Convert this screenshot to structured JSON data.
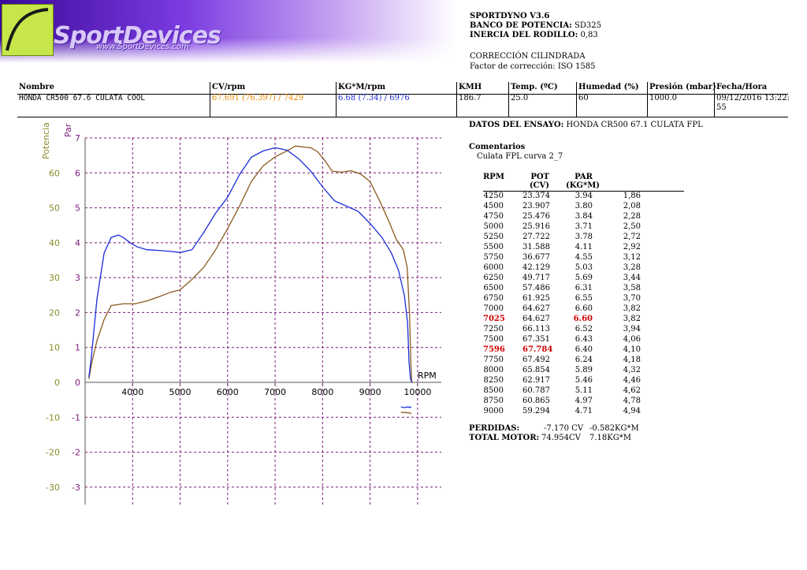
{
  "logo": {
    "text": "SportDevices",
    "url": "www.SportDevices.com"
  },
  "header": {
    "app": "SPORTDYNO V3.6",
    "banco_label": "BANCO DE POTENCIA:",
    "banco_value": "SD325",
    "inercia_label": "INERCIA DEL RODILLO:",
    "inercia_value": "0,83",
    "correccion": "CORRECCIÓN CILINDRADA",
    "factor": "Factor de corrección: ISO 1585"
  },
  "run_table": {
    "headers": [
      "Nombre",
      "CV/rpm",
      "KG*M/rpm",
      "KMH",
      "Temp. (ºC)",
      "Humedad (%)",
      "Presión (mbar)",
      "Fecha/Hora"
    ],
    "row": [
      "HONDA CR500 67.6 CULATA COOL",
      "67.691 (76.397) / 7429",
      "6.68 (7.34) / 6976",
      "186.7",
      "25.0",
      "60",
      "1000.0",
      "09/12/2016 13:22:",
      "55"
    ],
    "colors": {
      "cv": "#e38a00",
      "kgm": "#1a2cd8"
    }
  },
  "test": {
    "label": "DATOS DEL ENSAYO:",
    "value": "HONDA CR500 67.1 CULATA FPL",
    "comments_label": "Comentarios",
    "comments": "Culata FPL curva 2_7"
  },
  "points_table": {
    "headers": {
      "rpm": "RPM",
      "pot": "POT",
      "pot_unit": "(CV)",
      "par": "PAR",
      "par_unit": "(KG*M)"
    },
    "rows": [
      [
        "4250",
        "23.374",
        "3.94",
        "1,86"
      ],
      [
        "4500",
        "23.907",
        "3.80",
        "2,08"
      ],
      [
        "4750",
        "25.476",
        "3.84",
        "2,28"
      ],
      [
        "5000",
        "25.916",
        "3.71",
        "2,50"
      ],
      [
        "5250",
        "27.722",
        "3.78",
        "2,72"
      ],
      [
        "5500",
        "31.588",
        "4.11",
        "2,92"
      ],
      [
        "5750",
        "36.677",
        "4.55",
        "3,12"
      ],
      [
        "6000",
        "42.129",
        "5.03",
        "3,28"
      ],
      [
        "6250",
        "49.717",
        "5.69",
        "3,44"
      ],
      [
        "6500",
        "57.486",
        "6.31",
        "3,58"
      ],
      [
        "6750",
        "61.925",
        "6.55",
        "3,70"
      ],
      [
        "7000",
        "64.627",
        "6.60",
        "3,82"
      ],
      [
        "7025",
        "64.627",
        "6.60",
        "3,82"
      ],
      [
        "7250",
        "66.113",
        "6.52",
        "3,94"
      ],
      [
        "7500",
        "67.351",
        "6.43",
        "4,06"
      ],
      [
        "7596",
        "67.784",
        "6.40",
        "4,10"
      ],
      [
        "7750",
        "67.492",
        "6.24",
        "4,18"
      ],
      [
        "8000",
        "65.854",
        "5.89",
        "4,32"
      ],
      [
        "8250",
        "62.917",
        "5.46",
        "4,46"
      ],
      [
        "8500",
        "60.787",
        "5.11",
        "4,62"
      ],
      [
        "8750",
        "60.865",
        "4.97",
        "4,78"
      ],
      [
        "9000",
        "59.294",
        "4.71",
        "4,94"
      ]
    ],
    "highlight": {
      "7025": "par",
      "7596": "pot"
    }
  },
  "footer": {
    "perdidas_label": "PERDIDAS:",
    "perdidas_cv": "-7.170 CV",
    "perdidas_kgm": "-0.582KG*M",
    "total_label": "TOTAL MOTOR:",
    "total_cv": "74.954CV",
    "total_kgm": "7.18KG*M"
  },
  "chart_data": {
    "type": "line",
    "xlabel": "RPM",
    "y1label": "Potencia",
    "y2label": "Par",
    "xlim": [
      3000,
      10500
    ],
    "x_ticks": [
      "4000",
      "5000",
      "6000",
      "7000",
      "8000",
      "9000",
      "10000"
    ],
    "y1lim": [
      -35,
      70
    ],
    "y1_ticks": [
      "60",
      "50",
      "40",
      "30",
      "20",
      "10",
      "0",
      "-10",
      "-20",
      "-30"
    ],
    "y2lim": [
      -3.5,
      7
    ],
    "y2_ticks": [
      "7",
      "6",
      "5",
      "4",
      "3",
      "2",
      "1",
      "0",
      "-1",
      "-2",
      "-3"
    ],
    "colors": {
      "potencia": "#8b5a1e",
      "par": "#1a2cd8",
      "grid": "#7a1a7a",
      "y1": "#8b8b2a",
      "y2": "#7a1a7a"
    },
    "grid": true,
    "series": [
      {
        "axis": "y1",
        "x": [
          3080,
          3130,
          3250,
          3400,
          3550,
          3800,
          4050,
          4300,
          4550,
          4800,
          5000,
          5250,
          5500,
          5750,
          6000,
          6250,
          6500,
          6750,
          7000,
          7250,
          7430,
          7600,
          7750,
          7900,
          8050,
          8200,
          8400,
          8600,
          8800,
          9000,
          9200,
          9400,
          9550,
          9700,
          9780,
          9830,
          9860,
          9880,
          9900
        ],
        "y": [
          1,
          5,
          12,
          18,
          22,
          22.5,
          22.5,
          23.3,
          24.5,
          25.8,
          26.5,
          29.5,
          33,
          38,
          44,
          50.5,
          57.5,
          62,
          64.6,
          66.3,
          67.7,
          67.4,
          67.2,
          66,
          63.5,
          60.5,
          60.2,
          60.6,
          59.7,
          57.5,
          52,
          46,
          41,
          38,
          33,
          20,
          5,
          0,
          0
        ]
      },
      {
        "axis": "y2",
        "x": [
          3080,
          3130,
          3250,
          3400,
          3550,
          3700,
          3800,
          3950,
          4100,
          4300,
          4550,
          4800,
          5000,
          5250,
          5500,
          5750,
          6000,
          6250,
          6500,
          6750,
          7000,
          7250,
          7500,
          7750,
          8000,
          8250,
          8500,
          8750,
          9000,
          9250,
          9450,
          9600,
          9720,
          9790,
          9820,
          9850,
          9880
        ],
        "y": [
          0.15,
          0.7,
          2.4,
          3.7,
          4.15,
          4.22,
          4.15,
          4.0,
          3.88,
          3.8,
          3.78,
          3.75,
          3.72,
          3.8,
          4.3,
          4.85,
          5.3,
          5.95,
          6.45,
          6.63,
          6.72,
          6.65,
          6.4,
          6.05,
          5.6,
          5.2,
          5.05,
          4.9,
          4.55,
          4.15,
          3.7,
          3.2,
          2.5,
          1.7,
          0.6,
          0.1,
          0
        ]
      },
      {
        "axis": "y2",
        "x": [
          9650,
          9700,
          9750,
          9800,
          9830,
          9870
        ],
        "y": [
          -0.7,
          -0.72,
          -0.72,
          -0.7,
          -0.72,
          -0.7
        ]
      },
      {
        "axis": "y2",
        "x": [
          9650,
          9700,
          9750,
          9800,
          9830,
          9870
        ],
        "y": [
          -0.85,
          -0.87,
          -0.86,
          -0.88,
          -0.87,
          -0.9
        ]
      }
    ]
  }
}
